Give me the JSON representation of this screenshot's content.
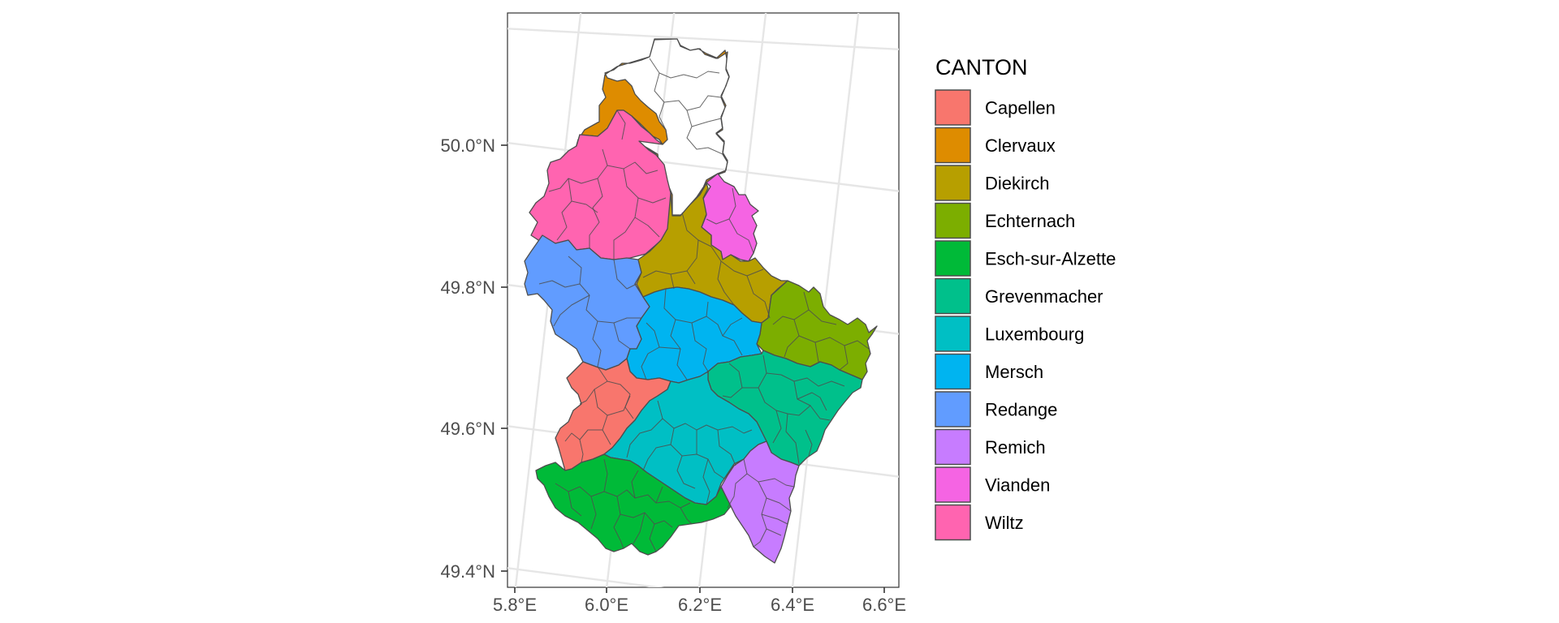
{
  "map": {
    "legend_title": "CANTON",
    "cantons": [
      {
        "name": "Capellen",
        "color": "#F8766D"
      },
      {
        "name": "Clervaux",
        "color": "#DE8C00"
      },
      {
        "name": "Diekirch",
        "color": "#B79F00"
      },
      {
        "name": "Echternach",
        "color": "#7CAE00"
      },
      {
        "name": "Esch-sur-Alzette",
        "color": "#00BA38"
      },
      {
        "name": "Grevenmacher",
        "color": "#00C08B"
      },
      {
        "name": "Luxembourg",
        "color": "#00BFC4"
      },
      {
        "name": "Mersch",
        "color": "#00B4F0"
      },
      {
        "name": "Redange",
        "color": "#619CFF"
      },
      {
        "name": "Remich",
        "color": "#C77CFF"
      },
      {
        "name": "Vianden",
        "color": "#F564E3"
      },
      {
        "name": "Wiltz",
        "color": "#FF64B0"
      }
    ],
    "y_ticks": [
      "50.0°N",
      "49.8°N",
      "49.6°N",
      "49.4°N"
    ],
    "x_ticks": [
      "5.8°E",
      "6.0°E",
      "6.2°E",
      "6.4°E",
      "6.6°E"
    ],
    "panel_background": "#ffffff",
    "grid": true
  }
}
